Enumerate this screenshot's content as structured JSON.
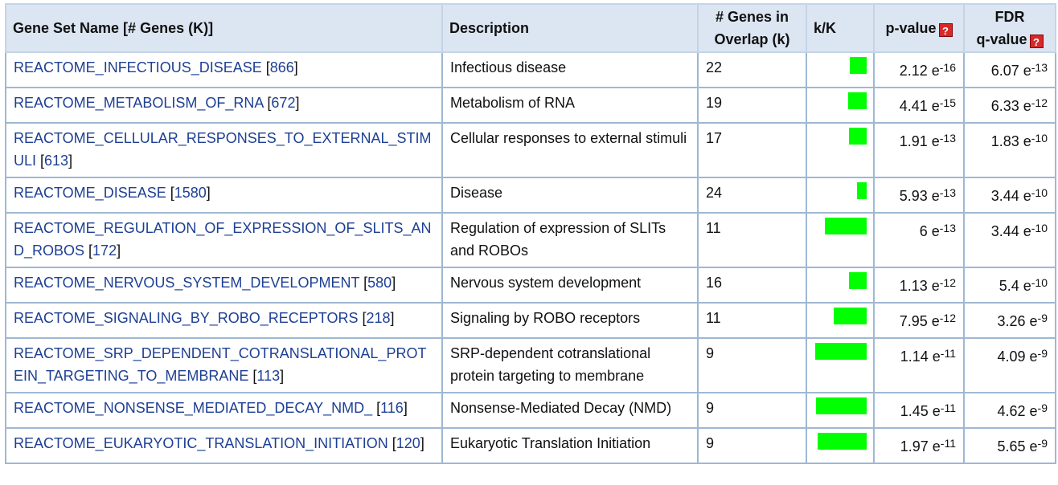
{
  "headers": {
    "gene_set": "Gene Set Name [# Genes (K)]",
    "description": "Description",
    "overlap_line1": "# Genes in",
    "overlap_line2": "Overlap (k)",
    "kK": "k/K",
    "pvalue": "p-value",
    "fdr_line1": "FDR",
    "fdr_line2": "q-value",
    "help_glyph": "?"
  },
  "bar_color": "#00ff00",
  "rows": [
    {
      "name": "REACTOME_INFECTIOUS_DISEASE",
      "size": "866",
      "description": "Infectious disease",
      "overlap": "22",
      "kK": 0.0254,
      "p_mant": "2.12 e",
      "p_exp": "-16",
      "q_mant": "6.07 e",
      "q_exp": "-13"
    },
    {
      "name": "REACTOME_METABOLISM_OF_RNA",
      "size": "672",
      "description": "Metabolism of RNA",
      "overlap": "19",
      "kK": 0.0283,
      "p_mant": "4.41 e",
      "p_exp": "-15",
      "q_mant": "6.33 e",
      "q_exp": "-12"
    },
    {
      "name": "REACTOME_CELLULAR_RESPONSES_TO_EXTERNAL_STIMULI",
      "size": "613",
      "description": "Cellular responses to external stimuli",
      "overlap": "17",
      "kK": 0.0277,
      "p_mant": "1.91 e",
      "p_exp": "-13",
      "q_mant": "1.83 e",
      "q_exp": "-10"
    },
    {
      "name": "REACTOME_DISEASE",
      "size": "1580",
      "description": "Disease",
      "overlap": "24",
      "kK": 0.0152,
      "p_mant": "5.93 e",
      "p_exp": "-13",
      "q_mant": "3.44 e",
      "q_exp": "-10"
    },
    {
      "name": "REACTOME_REGULATION_OF_EXPRESSION_OF_SLITS_AND_ROBOS",
      "size": "172",
      "description": "Regulation of expression of SLITs and ROBOs",
      "overlap": "11",
      "kK": 0.064,
      "p_mant": "6 e",
      "p_exp": "-13",
      "q_mant": "3.44 e",
      "q_exp": "-10"
    },
    {
      "name": "REACTOME_NERVOUS_SYSTEM_DEVELOPMENT",
      "size": "580",
      "description": "Nervous system development",
      "overlap": "16",
      "kK": 0.0276,
      "p_mant": "1.13 e",
      "p_exp": "-12",
      "q_mant": "5.4 e",
      "q_exp": "-10"
    },
    {
      "name": "REACTOME_SIGNALING_BY_ROBO_RECEPTORS",
      "size": "218",
      "description": "Signaling by ROBO receptors",
      "overlap": "11",
      "kK": 0.0505,
      "p_mant": "7.95 e",
      "p_exp": "-12",
      "q_mant": "3.26 e",
      "q_exp": "-9"
    },
    {
      "name": "REACTOME_SRP_DEPENDENT_COTRANSLATIONAL_PROTEIN_TARGETING_TO_MEMBRANE",
      "size": "113",
      "description": "SRP-dependent cotranslational protein targeting to membrane",
      "overlap": "9",
      "kK": 0.0796,
      "p_mant": "1.14 e",
      "p_exp": "-11",
      "q_mant": "4.09 e",
      "q_exp": "-9"
    },
    {
      "name": "REACTOME_NONSENSE_MEDIATED_DECAY_NMD_",
      "size": "116",
      "description": "Nonsense-Mediated Decay (NMD)",
      "overlap": "9",
      "kK": 0.0776,
      "p_mant": "1.45 e",
      "p_exp": "-11",
      "q_mant": "4.62 e",
      "q_exp": "-9"
    },
    {
      "name": "REACTOME_EUKARYOTIC_TRANSLATION_INITIATION",
      "size": "120",
      "description": "Eukaryotic Translation Initiation",
      "overlap": "9",
      "kK": 0.075,
      "p_mant": "1.97 e",
      "p_exp": "-11",
      "q_mant": "5.65 e",
      "q_exp": "-9"
    }
  ]
}
